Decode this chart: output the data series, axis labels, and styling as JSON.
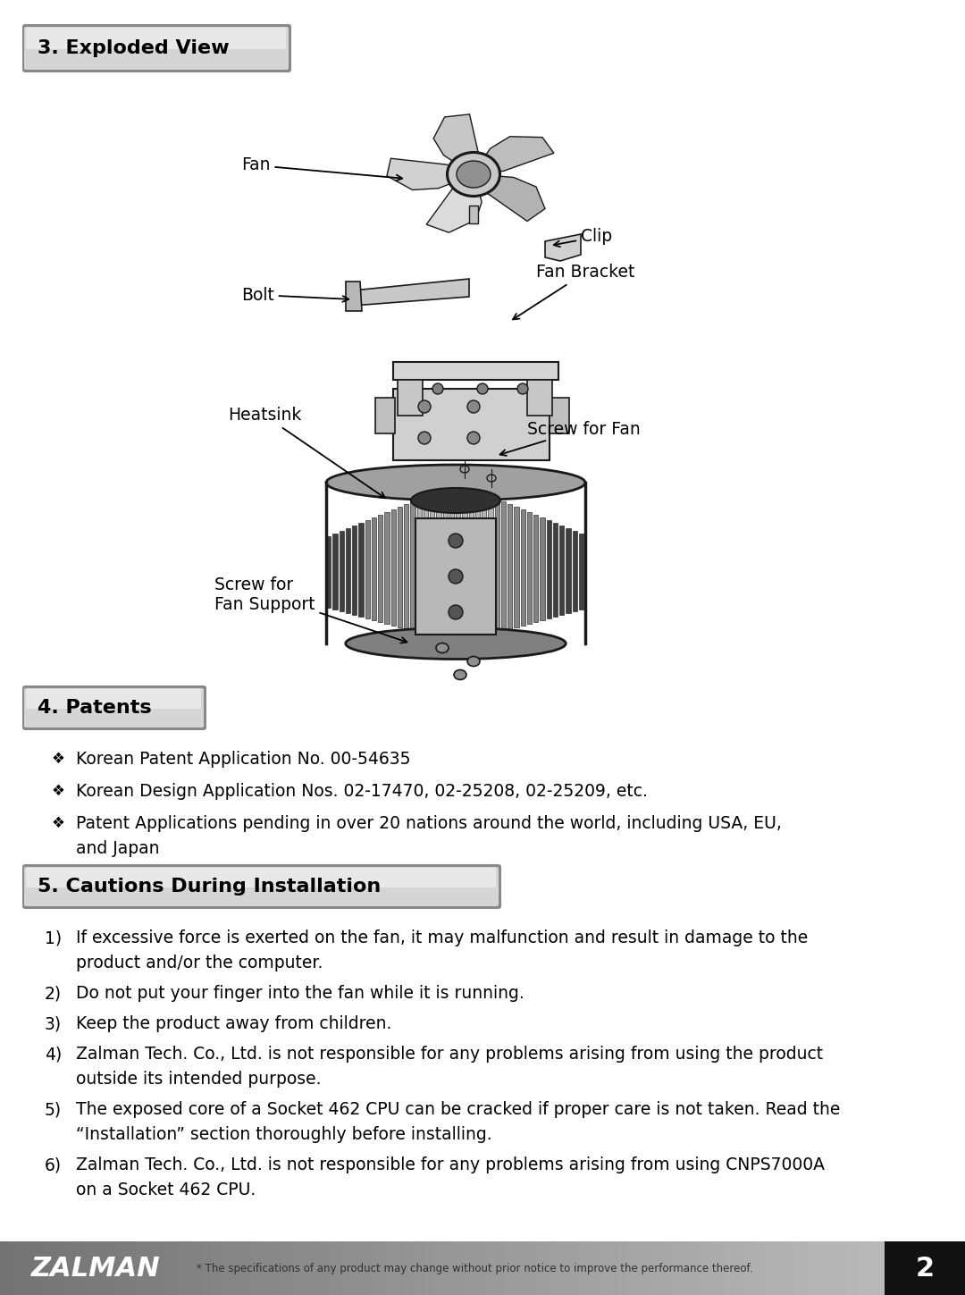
{
  "page_bg": "#ffffff",
  "section3_title": "3. Exploded View",
  "section4_title": "4. Patents",
  "section5_title": "5. Cautions During Installation",
  "patents_bullets": [
    "Korean Patent Application No. 00-54635",
    "Korean Design Application Nos. 02-17470, 02-25208, 02-25209, etc.",
    "Patent Applications pending in over 20 nations around the world, including USA, EU,\nand Japan"
  ],
  "cautions": [
    "If excessive force is exerted on the fan, it may malfunction and result in damage to the\nproduct and/or the computer.",
    "Do not put your finger into the fan while it is running.",
    "Keep the product away from children.",
    "Zalman Tech. Co., Ltd. is not responsible for any problems arising from using the product\noutside its intended purpose.",
    "The exposed core of a Socket 462 CPU can be cracked if proper care is not taken. Read the\n“Installation” section thoroughly before installing.",
    "Zalman Tech. Co., Ltd. is not responsible for any problems arising from using CNPS7000A\non a Socket 462 CPU."
  ],
  "footer_text": "* The specifications of any product may change without prior notice to improve the performance thereof.",
  "footer_brand": "ZALMAN",
  "page_number": "2"
}
